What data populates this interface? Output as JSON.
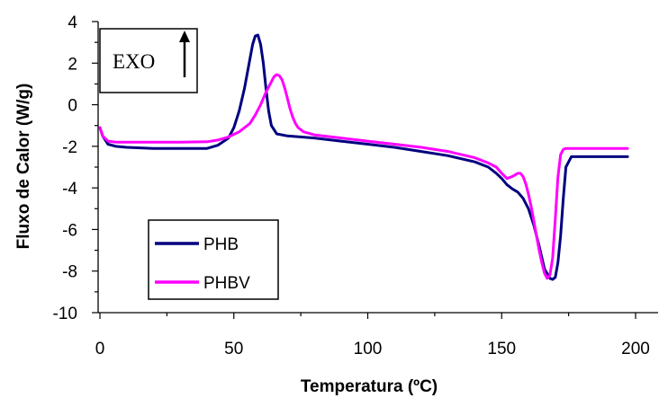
{
  "chart_data": {
    "type": "line",
    "xlabel": "Temperatura (ºC)",
    "ylabel": "Fluxo de Calor (W/g)",
    "xlim": [
      0,
      200
    ],
    "ylim": [
      -10,
      4
    ],
    "xticks": [
      "0",
      "50",
      "100",
      "150",
      "200"
    ],
    "yticks": [
      "4",
      "2",
      "0",
      "-2",
      "-4",
      "-6",
      "-8",
      "-10"
    ],
    "grid": false,
    "legend_position": "bottom-left",
    "annotation": "EXO",
    "series": [
      {
        "name": "PHB",
        "color": "#000080",
        "x": [
          0,
          1,
          3,
          6,
          10,
          20,
          30,
          40,
          44,
          48,
          50,
          52,
          54,
          56,
          57,
          58,
          59,
          60,
          61,
          62,
          63,
          64,
          66,
          70,
          80,
          90,
          100,
          110,
          120,
          130,
          140,
          145,
          148,
          150,
          152,
          154,
          156,
          158,
          160,
          162,
          164,
          166,
          168,
          169,
          170,
          171,
          172,
          173,
          174,
          176,
          180,
          190,
          197
        ],
        "y": [
          -1.1,
          -1.5,
          -1.9,
          -2.0,
          -2.05,
          -2.1,
          -2.1,
          -2.1,
          -1.95,
          -1.6,
          -1.1,
          -0.3,
          0.8,
          2.2,
          2.9,
          3.3,
          3.35,
          2.9,
          2.0,
          0.8,
          -0.3,
          -1.0,
          -1.4,
          -1.5,
          -1.6,
          -1.75,
          -1.9,
          -2.05,
          -2.25,
          -2.45,
          -2.75,
          -3.0,
          -3.3,
          -3.55,
          -3.85,
          -4.05,
          -4.2,
          -4.5,
          -5.0,
          -5.8,
          -6.8,
          -7.9,
          -8.35,
          -8.4,
          -8.3,
          -7.6,
          -6.3,
          -4.5,
          -3.0,
          -2.5,
          -2.5,
          -2.5,
          -2.5
        ]
      },
      {
        "name": "PHBV",
        "color": "#ff00ff",
        "x": [
          0,
          1,
          3,
          6,
          10,
          20,
          30,
          40,
          44,
          48,
          52,
          56,
          58,
          60,
          62,
          64,
          65,
          66,
          67,
          68,
          69,
          70,
          71,
          72,
          73,
          74,
          76,
          80,
          90,
          100,
          110,
          120,
          130,
          140,
          145,
          148,
          150,
          152,
          154,
          156,
          157,
          158,
          159,
          160,
          161,
          162,
          163,
          164,
          165,
          166,
          167,
          168,
          169,
          170,
          171,
          172,
          173,
          174,
          176,
          180,
          190,
          197
        ],
        "y": [
          -1.1,
          -1.5,
          -1.75,
          -1.8,
          -1.8,
          -1.8,
          -1.8,
          -1.78,
          -1.7,
          -1.55,
          -1.3,
          -0.9,
          -0.5,
          0.0,
          0.6,
          1.1,
          1.35,
          1.45,
          1.4,
          1.2,
          0.8,
          0.3,
          -0.2,
          -0.6,
          -0.9,
          -1.1,
          -1.3,
          -1.45,
          -1.6,
          -1.75,
          -1.9,
          -2.05,
          -2.25,
          -2.55,
          -2.8,
          -3.0,
          -3.3,
          -3.55,
          -3.45,
          -3.3,
          -3.3,
          -3.45,
          -3.8,
          -4.3,
          -4.9,
          -5.6,
          -6.3,
          -7.0,
          -7.6,
          -8.1,
          -8.35,
          -8.2,
          -7.4,
          -5.5,
          -3.5,
          -2.4,
          -2.15,
          -2.1,
          -2.1,
          -2.1,
          -2.1,
          -2.1
        ]
      }
    ]
  }
}
